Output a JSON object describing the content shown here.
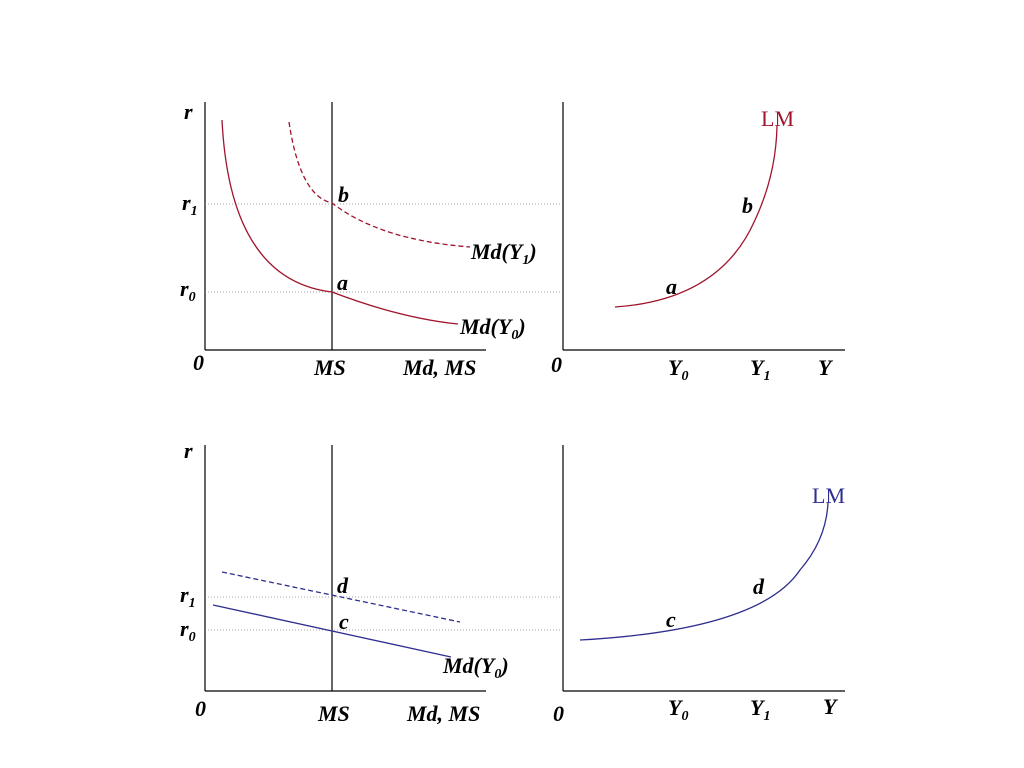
{
  "colors": {
    "lm_top": "#A0152E",
    "lm_bottom": "#2E2E8F",
    "axis": "#000000",
    "guide": "#8A8A8A"
  },
  "top": {
    "money": {
      "y_axis": "r",
      "origin": "0",
      "r1": "r",
      "r1_sub": "1",
      "r0": "r",
      "r0_sub": "0",
      "ms": "MS",
      "x_axis": "Md, MS",
      "point_b": "b",
      "point_a": "a",
      "md1_pre": "Md(Y",
      "md1_sub": "1",
      "md1_post": ")",
      "md0_pre": "Md(Y",
      "md0_sub": "0",
      "md0_post": ")"
    },
    "lm": {
      "origin": "0",
      "curve_label": "LM",
      "point_b": "b",
      "point_a": "a",
      "y0": "Y",
      "y0_sub": "0",
      "y1": "Y",
      "y1_sub": "1",
      "x_axis": "Y"
    }
  },
  "bottom": {
    "money": {
      "y_axis": "r",
      "origin": "0",
      "r1": "r",
      "r1_sub": "1",
      "r0": "r",
      "r0_sub": "0",
      "ms": "MS",
      "x_axis": "Md, MS",
      "point_d": "d",
      "point_c": "c",
      "md0_pre": "Md(Y",
      "md0_sub": "0",
      "md0_post": ")"
    },
    "lm": {
      "origin": "0",
      "curve_label": "LM",
      "point_d": "d",
      "point_c": "c",
      "y0": "Y",
      "y0_sub": "0",
      "y1": "Y",
      "y1_sub": "1",
      "x_axis": "Y"
    }
  }
}
